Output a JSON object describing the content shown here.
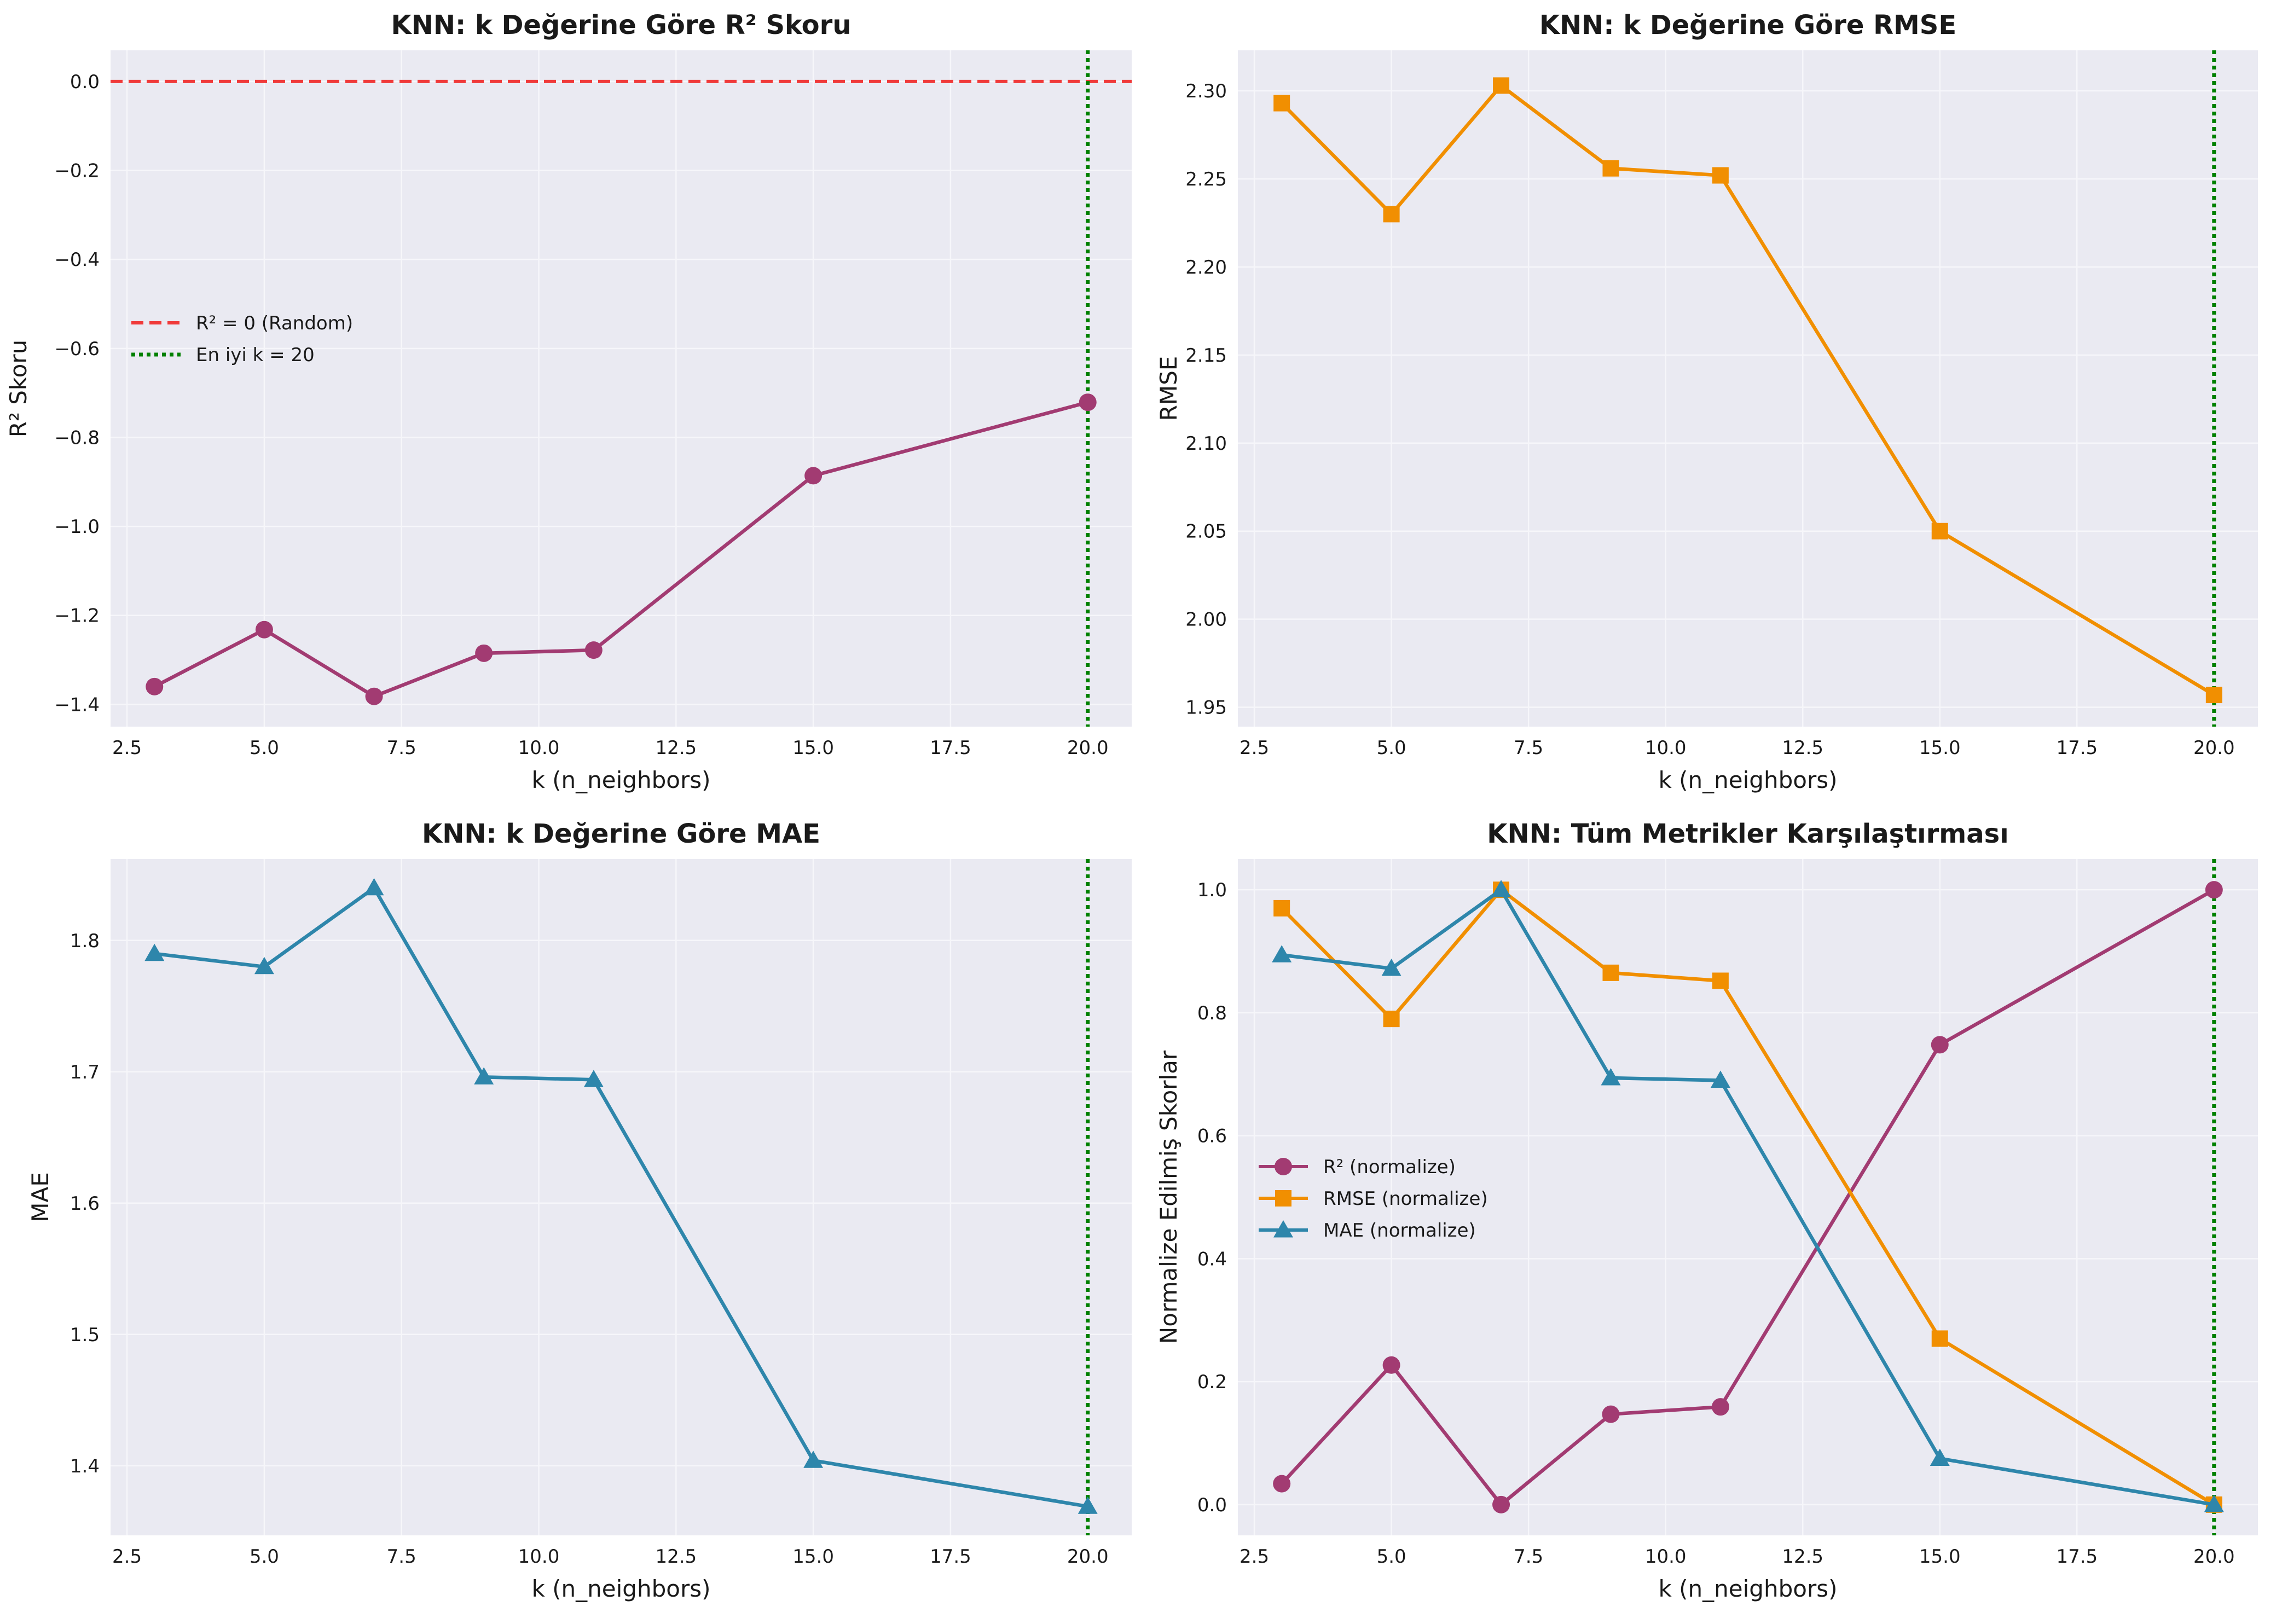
{
  "chart_data": [
    {
      "type": "line",
      "title": "KNN: k Değerine Göre R² Skoru",
      "xlabel": "k (n_neighbors)",
      "ylabel": "R² Skoru",
      "xlim": [
        2.2,
        20.8
      ],
      "ylim": [
        -1.45,
        0.07
      ],
      "xticks": [
        2.5,
        5.0,
        7.5,
        10.0,
        12.5,
        15.0,
        17.5,
        20.0
      ],
      "xtick_labels": [
        "2.5",
        "5.0",
        "7.5",
        "10.0",
        "12.5",
        "15.0",
        "17.5",
        "20.0"
      ],
      "yticks": [
        -1.4,
        -1.2,
        -1.0,
        -0.8,
        -0.6,
        -0.4,
        -0.2,
        0.0
      ],
      "ytick_labels": [
        "−1.4",
        "−1.2",
        "−1.0",
        "−0.8",
        "−0.6",
        "−0.4",
        "−0.2",
        "0.0"
      ],
      "grid": true,
      "legend_position": "center-left",
      "x": [
        3,
        5,
        7,
        9,
        11,
        15,
        20
      ],
      "series": [
        {
          "name": "",
          "values": [
            -1.36,
            -1.232,
            -1.382,
            -1.285,
            -1.278,
            -0.886,
            -0.721
          ],
          "color": "#a23b72",
          "marker": "circle",
          "style": "solid"
        }
      ],
      "reference_lines": [
        {
          "orientation": "horizontal",
          "value": 0.0,
          "label": "R² = 0 (Random)",
          "color": "#f03a3a",
          "style": "dashed"
        },
        {
          "orientation": "vertical",
          "value": 20,
          "label": "En iyi k = 20",
          "color": "#008000",
          "style": "dotted"
        }
      ]
    },
    {
      "type": "line",
      "title": "KNN: k Değerine Göre RMSE",
      "xlabel": "k (n_neighbors)",
      "ylabel": "RMSE",
      "xlim": [
        2.2,
        20.8
      ],
      "ylim": [
        1.939,
        2.323
      ],
      "xticks": [
        2.5,
        5.0,
        7.5,
        10.0,
        12.5,
        15.0,
        17.5,
        20.0
      ],
      "xtick_labels": [
        "2.5",
        "5.0",
        "7.5",
        "10.0",
        "12.5",
        "15.0",
        "17.5",
        "20.0"
      ],
      "yticks": [
        1.95,
        2.0,
        2.05,
        2.1,
        2.15,
        2.2,
        2.25,
        2.3
      ],
      "ytick_labels": [
        "1.95",
        "2.00",
        "2.05",
        "2.10",
        "2.15",
        "2.20",
        "2.25",
        "2.30"
      ],
      "grid": true,
      "x": [
        3,
        5,
        7,
        9,
        11,
        15,
        20
      ],
      "series": [
        {
          "name": "",
          "values": [
            2.293,
            2.23,
            2.303,
            2.256,
            2.252,
            2.05,
            1.957
          ],
          "color": "#f18f01",
          "marker": "square",
          "style": "solid"
        }
      ],
      "reference_lines": [
        {
          "orientation": "vertical",
          "value": 20,
          "label": "",
          "color": "#008000",
          "style": "dotted"
        }
      ]
    },
    {
      "type": "line",
      "title": "KNN: k Değerine Göre MAE",
      "xlabel": "k (n_neighbors)",
      "ylabel": "MAE",
      "xlim": [
        2.2,
        20.8
      ],
      "ylim": [
        1.347,
        1.862
      ],
      "xticks": [
        2.5,
        5.0,
        7.5,
        10.0,
        12.5,
        15.0,
        17.5,
        20.0
      ],
      "xtick_labels": [
        "2.5",
        "5.0",
        "7.5",
        "10.0",
        "12.5",
        "15.0",
        "17.5",
        "20.0"
      ],
      "yticks": [
        1.4,
        1.5,
        1.6,
        1.7,
        1.8
      ],
      "ytick_labels": [
        "1.4",
        "1.5",
        "1.6",
        "1.7",
        "1.8"
      ],
      "grid": true,
      "x": [
        3,
        5,
        7,
        9,
        11,
        15,
        20
      ],
      "series": [
        {
          "name": "",
          "values": [
            1.79,
            1.78,
            1.84,
            1.696,
            1.694,
            1.404,
            1.369
          ],
          "color": "#2e86ab",
          "marker": "triangle",
          "style": "solid"
        }
      ],
      "reference_lines": [
        {
          "orientation": "vertical",
          "value": 20,
          "label": "",
          "color": "#008000",
          "style": "dotted"
        }
      ]
    },
    {
      "type": "line",
      "title": "KNN: Tüm Metrikler Karşılaştırması",
      "xlabel": "k (n_neighbors)",
      "ylabel": "Normalize Edilmiş Skorlar",
      "xlim": [
        2.2,
        20.8
      ],
      "ylim": [
        -0.05,
        1.05
      ],
      "xticks": [
        2.5,
        5.0,
        7.5,
        10.0,
        12.5,
        15.0,
        17.5,
        20.0
      ],
      "xtick_labels": [
        "2.5",
        "5.0",
        "7.5",
        "10.0",
        "12.5",
        "15.0",
        "17.5",
        "20.0"
      ],
      "yticks": [
        0.0,
        0.2,
        0.4,
        0.6,
        0.8,
        1.0
      ],
      "ytick_labels": [
        "0.0",
        "0.2",
        "0.4",
        "0.6",
        "0.8",
        "1.0"
      ],
      "grid": true,
      "legend_position": "center-left",
      "x": [
        3,
        5,
        7,
        9,
        11,
        15,
        20
      ],
      "series": [
        {
          "name": "R² (normalize)",
          "values": [
            0.034,
            0.227,
            0.0,
            0.147,
            0.159,
            0.748,
            1.0
          ],
          "color": "#a23b72",
          "marker": "circle",
          "style": "solid"
        },
        {
          "name": "RMSE (normalize)",
          "values": [
            0.97,
            0.79,
            1.0,
            0.865,
            0.852,
            0.27,
            0.0
          ],
          "color": "#f18f01",
          "marker": "square",
          "style": "solid"
        },
        {
          "name": "MAE (normalize)",
          "values": [
            0.894,
            0.872,
            1.0,
            0.694,
            0.69,
            0.075,
            0.0
          ],
          "color": "#2e86ab",
          "marker": "triangle",
          "style": "solid"
        }
      ],
      "reference_lines": [
        {
          "orientation": "vertical",
          "value": 20,
          "label": "",
          "color": "#008000",
          "style": "dotted"
        }
      ]
    }
  ]
}
